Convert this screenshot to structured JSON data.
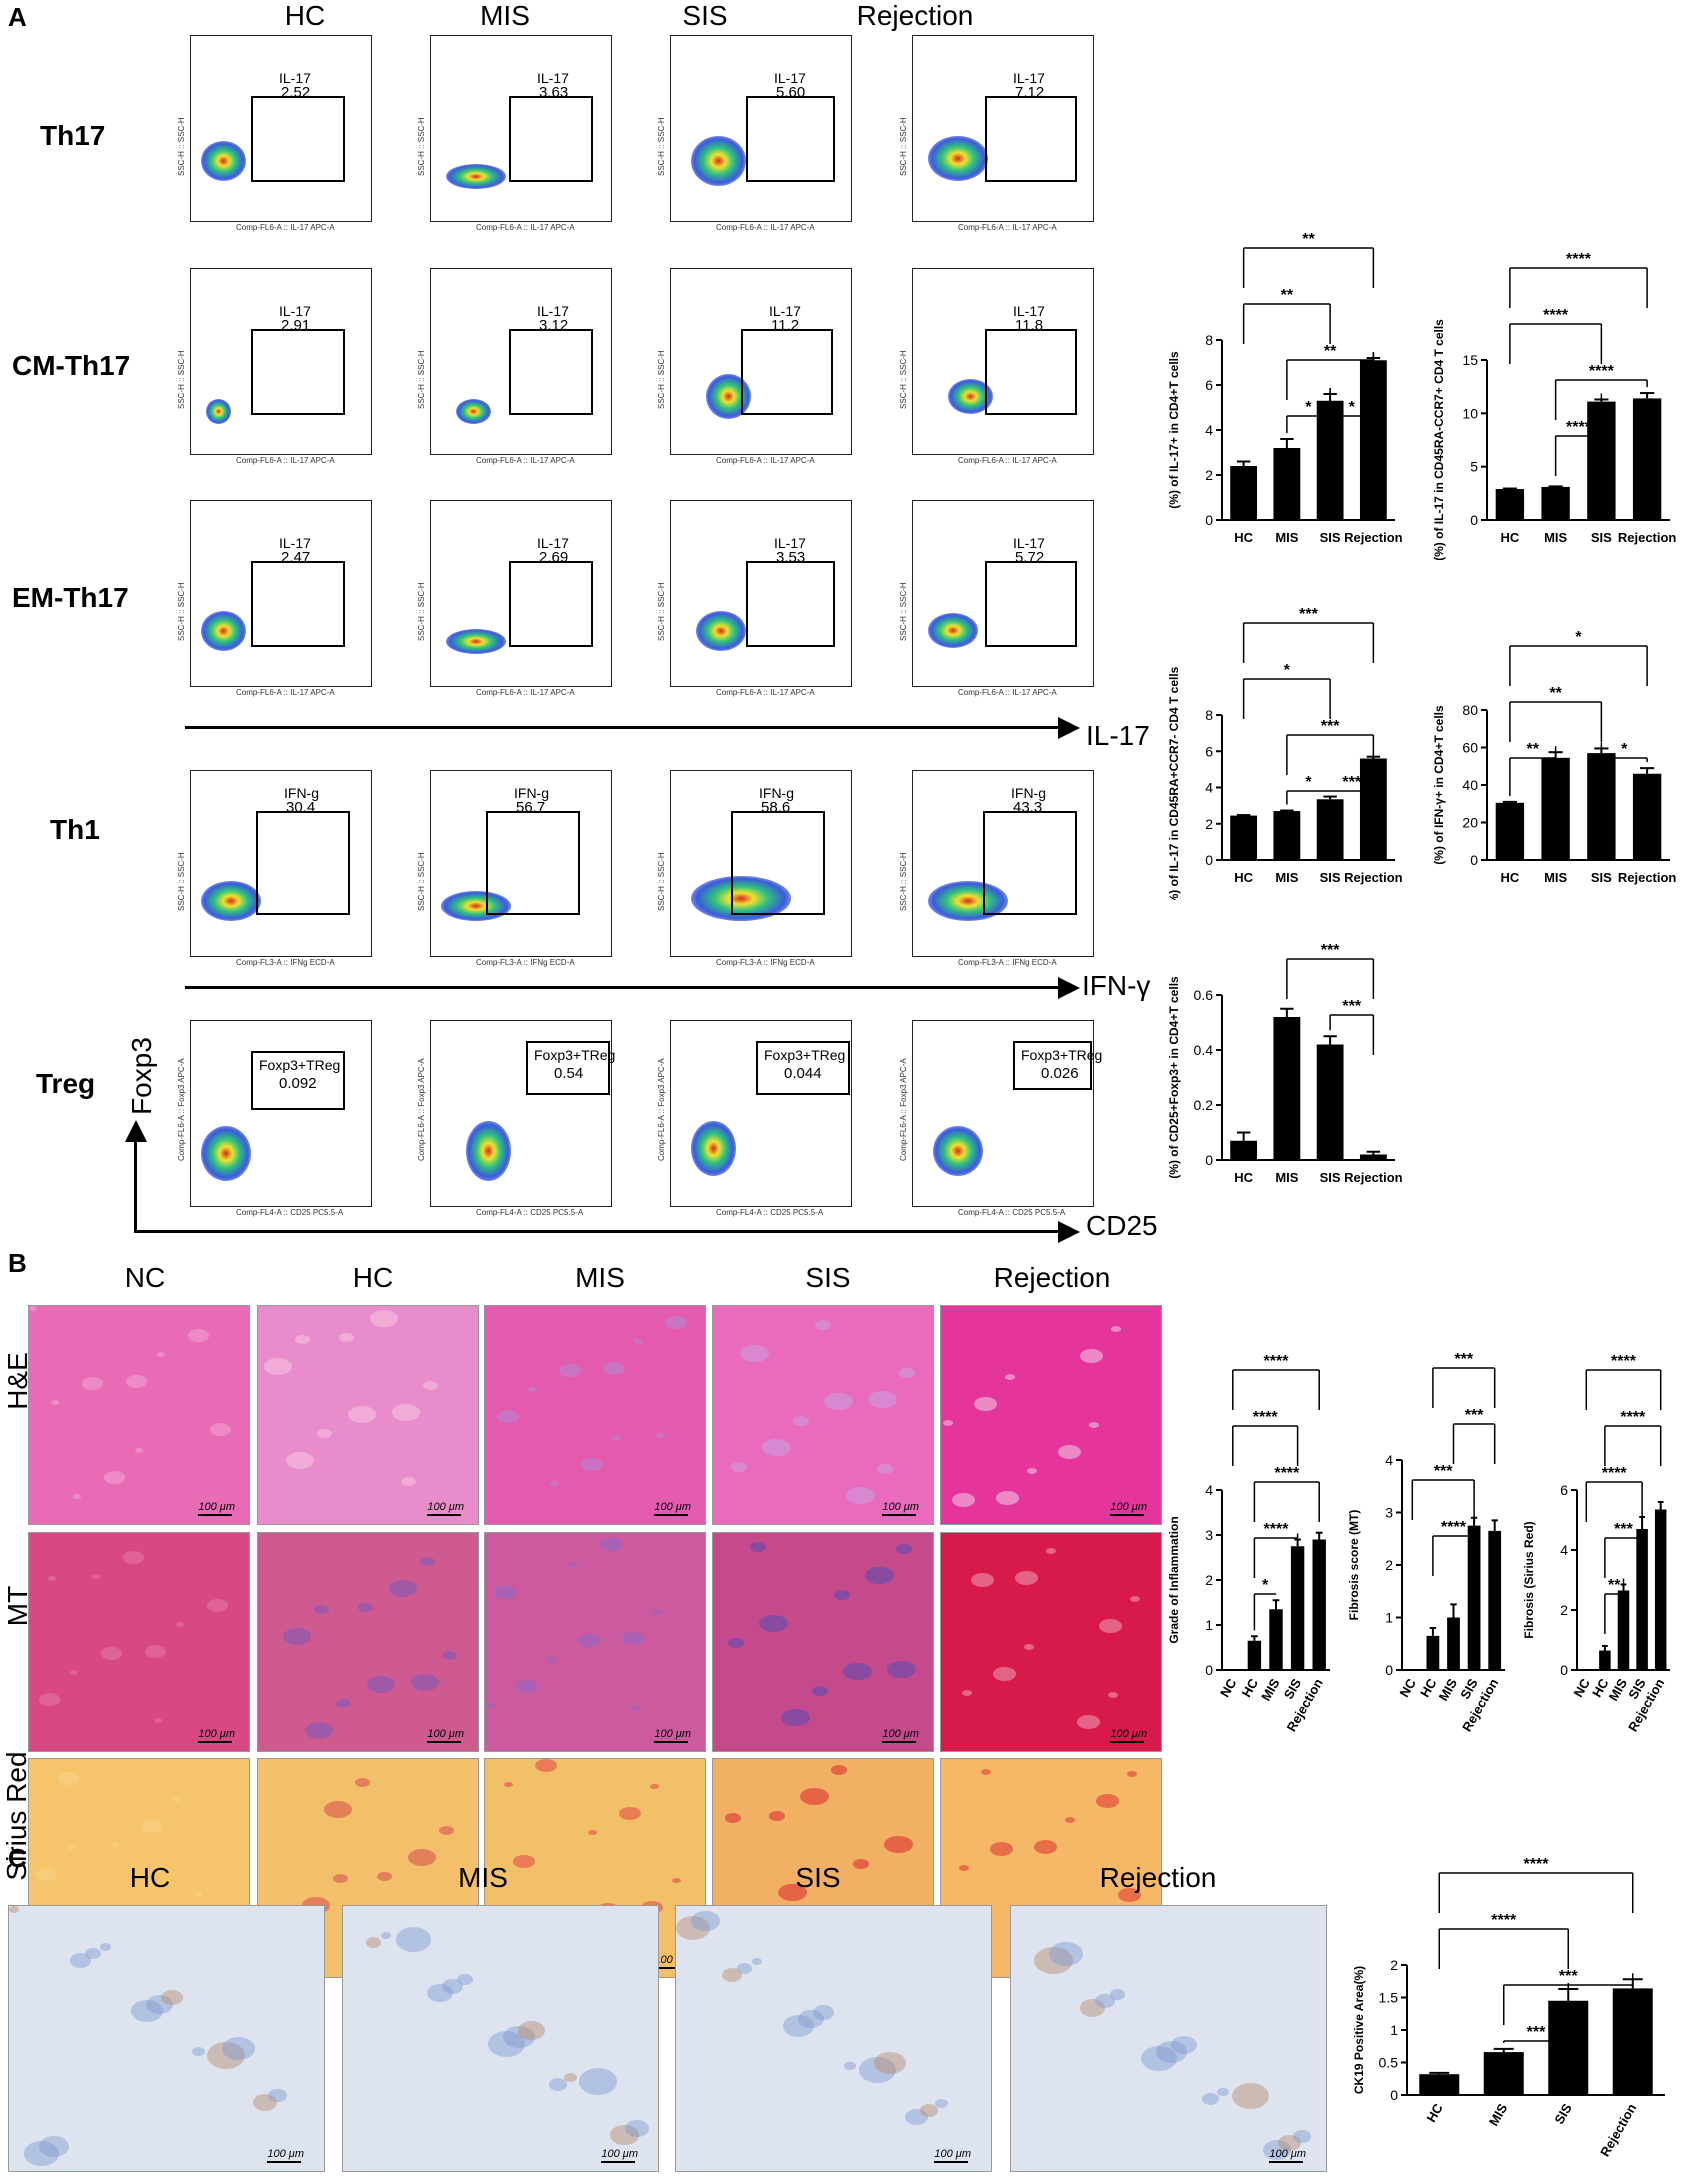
{
  "panels": {
    "a": "A",
    "b": "B",
    "c": "C"
  },
  "flow_columns": [
    "HC",
    "MIS",
    "SIS",
    "Rejection"
  ],
  "flow_rows": [
    {
      "label": "Th17",
      "gate": "IL-17",
      "values": [
        "2.52",
        "3.63",
        "5.60",
        "7.12"
      ],
      "xaxis": "Comp-FL6-A :: IL-17 APC-A",
      "yaxis": "SSC-H :: SSC-H"
    },
    {
      "label": "CM-Th17",
      "gate": "IL-17",
      "values": [
        "2.91",
        "3.12",
        "11.2",
        "11.8"
      ],
      "xaxis": "Comp-FL6-A :: IL-17 APC-A",
      "yaxis": "SSC-H :: SSC-H"
    },
    {
      "label": "EM-Th17",
      "gate": "IL-17",
      "values": [
        "2.47",
        "2.69",
        "3.53",
        "5.72"
      ],
      "xaxis": "Comp-FL6-A :: IL-17 APC-A",
      "yaxis": "SSC-H :: SSC-H"
    },
    {
      "label": "Th1",
      "gate": "IFN-g",
      "values": [
        "30.4",
        "56.7",
        "58.6",
        "43.3"
      ],
      "xaxis": "Comp-FL3-A :: IFNg ECD-A",
      "yaxis": "SSC-H :: SSC-H"
    },
    {
      "label": "Treg",
      "gate": "Foxp3+TReg",
      "values": [
        "0.092",
        "0.54",
        "0.044",
        "0.026"
      ],
      "xaxis": "Comp-FL4-A :: CD25 PC5.5-A",
      "yaxis": "Comp-FL6-A :: Foxp3 APC-A"
    }
  ],
  "axis_arrows": {
    "il17": "IL-17",
    "ifng": "IFN-γ",
    "foxp3": "Foxp3",
    "cd25": "CD25"
  },
  "histo_columns": [
    "NC",
    "HC",
    "MIS",
    "SIS",
    "Rejection"
  ],
  "histo_rows": [
    "H&E",
    "MT",
    "Sirius Red"
  ],
  "scale_label": "100 μm",
  "c_columns": [
    "HC",
    "MIS",
    "SIS",
    "Rejection"
  ],
  "chart_data": [
    {
      "id": "il17_cd4",
      "type": "bar",
      "categories": [
        "HC",
        "MIS",
        "SIS",
        "Rejection"
      ],
      "values": [
        2.4,
        3.2,
        5.3,
        7.1
      ],
      "errors": [
        0.2,
        0.4,
        0.3,
        0.1
      ],
      "ylabel": "(%) of IL-17+ in CD4+T cells",
      "ylim": [
        0,
        8
      ],
      "yticks": [
        0,
        2,
        4,
        6,
        8
      ],
      "sig": [
        {
          "from": 2,
          "to": 3,
          "level": 1,
          "text": "*"
        },
        {
          "from": 1,
          "to": 2,
          "level": 1,
          "text": "*"
        },
        {
          "from": 1,
          "to": 3,
          "level": 2,
          "text": "**"
        },
        {
          "from": 0,
          "to": 2,
          "level": 3,
          "text": "**"
        },
        {
          "from": 0,
          "to": 3,
          "level": 4,
          "text": "**"
        }
      ]
    },
    {
      "id": "il17_cm",
      "type": "bar",
      "categories": [
        "HC",
        "MIS",
        "SIS",
        "Rejection"
      ],
      "values": [
        2.9,
        3.1,
        11.1,
        11.4
      ],
      "errors": [
        0.05,
        0.05,
        0.2,
        0.5
      ],
      "ylabel": "(%) of IL-17 in CD45RA-CCR7+ CD4 T cells",
      "ylim": [
        0,
        15
      ],
      "yticks": [
        0,
        5,
        10,
        15
      ],
      "sig": [
        {
          "from": 1,
          "to": 2,
          "level": 1,
          "text": "****"
        },
        {
          "from": 1,
          "to": 3,
          "level": 2,
          "text": "****"
        },
        {
          "from": 0,
          "to": 2,
          "level": 3,
          "text": "****"
        },
        {
          "from": 0,
          "to": 3,
          "level": 4,
          "text": "****"
        }
      ]
    },
    {
      "id": "il17_em",
      "type": "bar",
      "categories": [
        "HC",
        "MIS",
        "SIS",
        "Rejection"
      ],
      "values": [
        2.45,
        2.7,
        3.35,
        5.6
      ],
      "errors": [
        0.03,
        0.03,
        0.15,
        0.1
      ],
      "ylabel": "(%) of IL-17 in CD45RA+CCR7- CD4 T cells",
      "ylim": [
        0,
        8
      ],
      "yticks": [
        0,
        2,
        4,
        6,
        8
      ],
      "sig": [
        {
          "from": 2,
          "to": 3,
          "level": 1,
          "text": "***"
        },
        {
          "from": 1,
          "to": 2,
          "level": 1,
          "text": "*"
        },
        {
          "from": 1,
          "to": 3,
          "level": 2,
          "text": "***"
        },
        {
          "from": 0,
          "to": 2,
          "level": 3,
          "text": "*"
        },
        {
          "from": 0,
          "to": 3,
          "level": 4,
          "text": "***"
        }
      ]
    },
    {
      "id": "ifng_cd4",
      "type": "bar",
      "categories": [
        "HC",
        "MIS",
        "SIS",
        "Rejection"
      ],
      "values": [
        30.5,
        54.5,
        57,
        46
      ],
      "errors": [
        0.5,
        3,
        2.5,
        3
      ],
      "ylabel": "(%) of IFN-γ+ in CD4+T cells",
      "ylim": [
        0,
        80
      ],
      "yticks": [
        0,
        20,
        40,
        60,
        80
      ],
      "sig": [
        {
          "from": 0,
          "to": 1,
          "level": 1,
          "text": "**"
        },
        {
          "from": 2,
          "to": 3,
          "level": 1,
          "text": "*"
        },
        {
          "from": 0,
          "to": 2,
          "level": 2,
          "text": "**"
        },
        {
          "from": 0,
          "to": 3,
          "level": 3,
          "text": "*"
        }
      ]
    },
    {
      "id": "treg_cd4",
      "type": "bar",
      "categories": [
        "HC",
        "MIS",
        "SIS",
        "Rejection"
      ],
      "values": [
        0.07,
        0.52,
        0.42,
        0.02
      ],
      "errors": [
        0.03,
        0.03,
        0.03,
        0.01
      ],
      "ylabel": "(%) of CD25+Foxp3+ in CD4+T cells",
      "ylim": [
        0,
        0.6
      ],
      "yticks": [
        0.0,
        0.2,
        0.4,
        0.6
      ],
      "sig": [
        {
          "from": 2,
          "to": 3,
          "level": 1,
          "text": "***"
        },
        {
          "from": 1,
          "to": 3,
          "level": 2,
          "text": "***"
        }
      ]
    },
    {
      "id": "inflammation",
      "type": "bar",
      "categories": [
        "NC",
        "HC",
        "MIS",
        "SIS",
        "Rejection"
      ],
      "values": [
        0,
        0.65,
        1.35,
        2.75,
        2.9
      ],
      "errors": [
        0,
        0.1,
        0.2,
        0.15,
        0.15
      ],
      "ylabel": "Grade of Inflammation",
      "ylim": [
        0,
        4
      ],
      "yticks": [
        0,
        1,
        2,
        3,
        4
      ],
      "sig": [
        {
          "from": 1,
          "to": 2,
          "level": 1,
          "text": "*"
        },
        {
          "from": 1,
          "to": 3,
          "level": 2,
          "text": "****"
        },
        {
          "from": 1,
          "to": 4,
          "level": 3,
          "text": "****"
        },
        {
          "from": 0,
          "to": 3,
          "level": 4,
          "text": "****"
        },
        {
          "from": 0,
          "to": 4,
          "level": 5,
          "text": "****"
        }
      ]
    },
    {
      "id": "fibrosis_mt",
      "type": "bar",
      "categories": [
        "NC",
        "HC",
        "MIS",
        "SIS",
        "Rejection"
      ],
      "values": [
        0,
        0.65,
        1.0,
        2.75,
        2.65
      ],
      "errors": [
        0,
        0.15,
        0.25,
        0.15,
        0.2
      ],
      "ylabel": "Fibrosis score (MT)",
      "ylim": [
        0,
        4
      ],
      "yticks": [
        0,
        1,
        2,
        3,
        4
      ],
      "sig": [
        {
          "from": 1,
          "to": 3,
          "level": 1,
          "text": "****"
        },
        {
          "from": 0,
          "to": 3,
          "level": 2,
          "text": "***"
        },
        {
          "from": 2,
          "to": 4,
          "level": 3,
          "text": "***"
        },
        {
          "from": 1,
          "to": 4,
          "level": 4,
          "text": "***"
        }
      ]
    },
    {
      "id": "fibrosis_sr",
      "type": "bar",
      "categories": [
        "NC",
        "HC",
        "MIS",
        "SIS",
        "Rejection"
      ],
      "values": [
        0,
        0.65,
        2.65,
        4.7,
        5.35
      ],
      "errors": [
        0,
        0.15,
        0.2,
        0.4,
        0.25
      ],
      "ylabel": "Fibrosis (Sirius Red)",
      "ylim": [
        0,
        6
      ],
      "yticks": [
        0,
        2,
        4,
        6
      ],
      "sig": [
        {
          "from": 1,
          "to": 2,
          "level": 1,
          "text": "**"
        },
        {
          "from": 1,
          "to": 3,
          "level": 2,
          "text": "***"
        },
        {
          "from": 0,
          "to": 3,
          "level": 3,
          "text": "****"
        },
        {
          "from": 1,
          "to": 4,
          "level": 4,
          "text": "****"
        },
        {
          "from": 0,
          "to": 4,
          "level": 5,
          "text": "****"
        }
      ]
    },
    {
      "id": "ck19",
      "type": "bar",
      "categories": [
        "HC",
        "MIS",
        "SIS",
        "Rejection"
      ],
      "values": [
        0.32,
        0.66,
        1.45,
        1.64
      ],
      "errors": [
        0.02,
        0.05,
        0.18,
        0.14
      ],
      "ylabel": "CK19 Positive Area(%)",
      "ylim": [
        0,
        2.0
      ],
      "yticks": [
        0.0,
        0.5,
        1.0,
        1.5,
        2.0
      ],
      "sig": [
        {
          "from": 1,
          "to": 2,
          "level": 1,
          "text": "***"
        },
        {
          "from": 1,
          "to": 3,
          "level": 2,
          "text": "***"
        },
        {
          "from": 0,
          "to": 2,
          "level": 3,
          "text": "****"
        },
        {
          "from": 0,
          "to": 3,
          "level": 4,
          "text": "****"
        }
      ]
    }
  ]
}
